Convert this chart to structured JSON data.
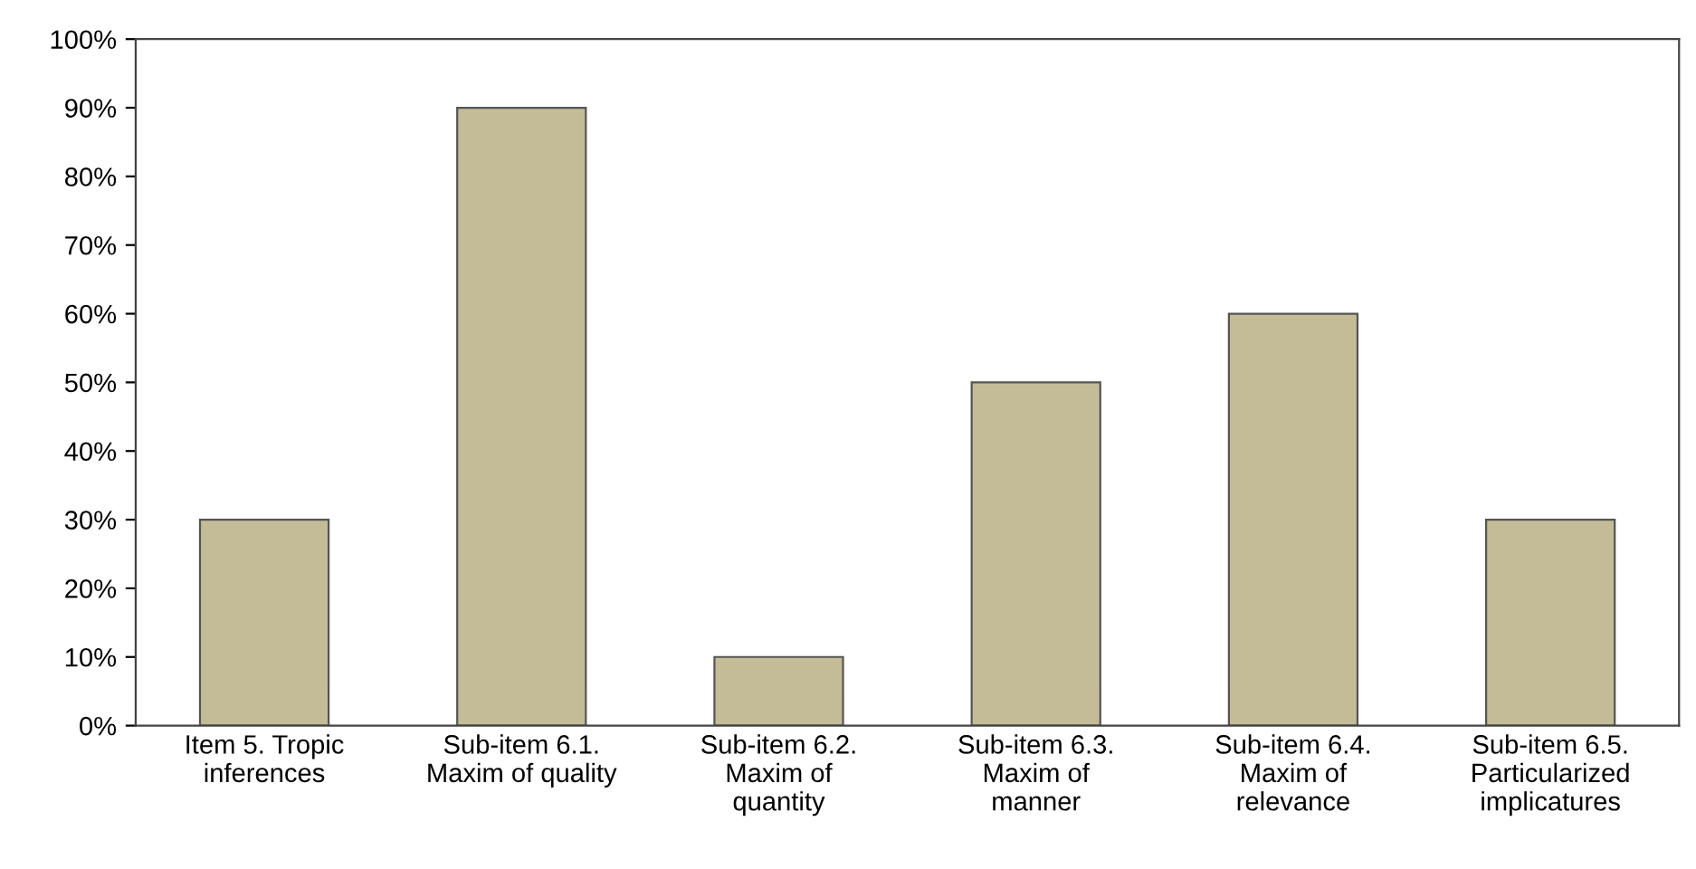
{
  "chart_data": {
    "type": "bar",
    "categories": [
      "Item 5. Tropic\ninferences",
      "Sub-item 6.1.\nMaxim of quality",
      "Sub-item 6.2.\nMaxim of\nquantity",
      "Sub-item 6.3.\nMaxim of\nmanner",
      "Sub-item 6.4.\nMaxim of\nrelevance",
      "Sub-item 6.5.\nParticularized\nimplicatures"
    ],
    "values": [
      30,
      90,
      10,
      50,
      60,
      30
    ],
    "color": "#c4bc96",
    "ylim": [
      0,
      100
    ],
    "yticks": [
      {
        "value": 0,
        "label": "0%"
      },
      {
        "value": 10,
        "label": "10%"
      },
      {
        "value": 20,
        "label": "20%"
      },
      {
        "value": 30,
        "label": "30%"
      },
      {
        "value": 40,
        "label": "40%"
      },
      {
        "value": 50,
        "label": "50%"
      },
      {
        "value": 60,
        "label": "60%"
      },
      {
        "value": 70,
        "label": "70%"
      },
      {
        "value": 80,
        "label": "80%"
      },
      {
        "value": 90,
        "label": "90%"
      },
      {
        "value": 100,
        "label": "100%"
      }
    ],
    "grid": false
  }
}
